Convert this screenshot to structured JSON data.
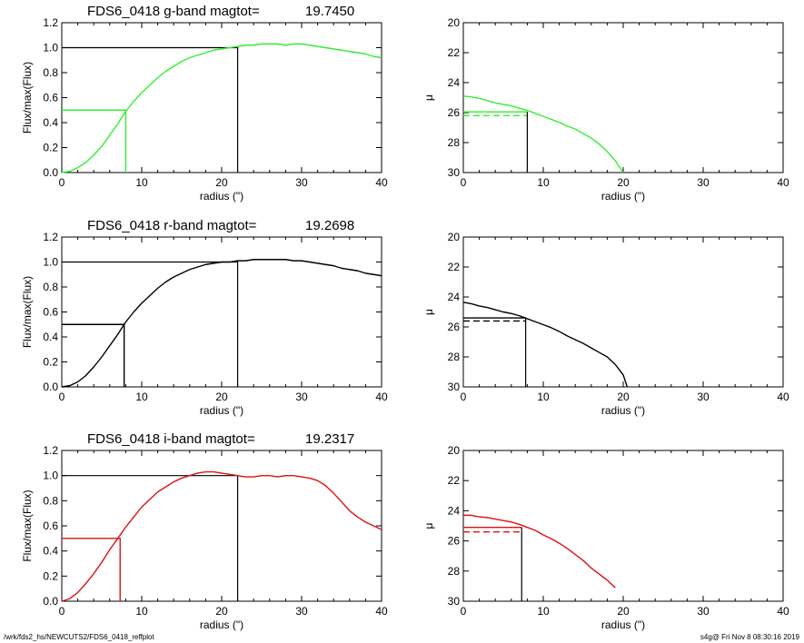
{
  "footer": {
    "left": "/wrk/fds2_hs/NEWCUTS2/FDS6_0418_reffplot",
    "right": "s4g@  Fri Nov  8 08:30:16 2019"
  },
  "colors": {
    "g": "#33ee33",
    "r": "#000000",
    "i": "#dd1111",
    "axes": "#000000"
  },
  "chart_data": [
    {
      "id": "g-growth",
      "type": "line",
      "band": "g",
      "title_left": "FDS6_0418 g-band  magtot=",
      "title_value": "19.7450",
      "xlabel": "radius (\")",
      "ylabel": "Flux/max(Flux)",
      "xlim": [
        0,
        40
      ],
      "ylim": [
        0,
        1.2
      ],
      "xticks": [
        0,
        10,
        20,
        30,
        40
      ],
      "yticks": [
        0.0,
        0.2,
        0.4,
        0.6,
        0.8,
        1.0,
        1.2
      ],
      "series": [
        {
          "values": [
            [
              0,
              0
            ],
            [
              1,
              0.01
            ],
            [
              2,
              0.04
            ],
            [
              3,
              0.08
            ],
            [
              4,
              0.14
            ],
            [
              5,
              0.21
            ],
            [
              6,
              0.3
            ],
            [
              7,
              0.39
            ],
            [
              8,
              0.49
            ],
            [
              9,
              0.57
            ],
            [
              10,
              0.64
            ],
            [
              11,
              0.7
            ],
            [
              12,
              0.76
            ],
            [
              13,
              0.81
            ],
            [
              14,
              0.85
            ],
            [
              15,
              0.89
            ],
            [
              16,
              0.92
            ],
            [
              17,
              0.94
            ],
            [
              18,
              0.96
            ],
            [
              19,
              0.98
            ],
            [
              20,
              0.99
            ],
            [
              21,
              1.0
            ],
            [
              22,
              1.01
            ],
            [
              23,
              1.02
            ],
            [
              24,
              1.02
            ],
            [
              25,
              1.03
            ],
            [
              26,
              1.03
            ],
            [
              27,
              1.03
            ],
            [
              28,
              1.02
            ],
            [
              29,
              1.03
            ],
            [
              30,
              1.03
            ],
            [
              31,
              1.02
            ],
            [
              32,
              1.01
            ],
            [
              33,
              1.0
            ],
            [
              34,
              0.99
            ],
            [
              35,
              0.98
            ],
            [
              36,
              0.97
            ],
            [
              37,
              0.96
            ],
            [
              38,
              0.95
            ],
            [
              39,
              0.93
            ],
            [
              40,
              0.92
            ]
          ]
        }
      ],
      "reference_lines": {
        "r_half": 8,
        "r_total": 22,
        "level_half": 0.5,
        "level_total": 1.0
      }
    },
    {
      "id": "g-profile",
      "type": "line",
      "band": "g",
      "xlabel": "radius (\")",
      "ylabel": "μ",
      "xlim": [
        0,
        40
      ],
      "ylim": [
        30,
        20
      ],
      "inverted_y": true,
      "xticks": [
        0,
        10,
        20,
        30,
        40
      ],
      "yticks": [
        20,
        22,
        24,
        26,
        28,
        30
      ],
      "series": [
        {
          "values": [
            [
              0,
              24.9
            ],
            [
              1,
              24.95
            ],
            [
              2,
              25.05
            ],
            [
              3,
              25.2
            ],
            [
              4,
              25.35
            ],
            [
              5,
              25.45
            ],
            [
              6,
              25.55
            ],
            [
              7,
              25.7
            ],
            [
              8,
              25.85
            ],
            [
              9,
              26.05
            ],
            [
              10,
              26.25
            ],
            [
              11,
              26.45
            ],
            [
              12,
              26.65
            ],
            [
              13,
              26.9
            ],
            [
              14,
              27.1
            ],
            [
              15,
              27.4
            ],
            [
              16,
              27.7
            ],
            [
              17,
              28.1
            ],
            [
              18,
              28.6
            ],
            [
              19,
              29.2
            ],
            [
              20,
              30
            ]
          ]
        }
      ],
      "reference_lines": {
        "r_half": 8,
        "mu_solid": 25.95,
        "mu_dashed": 26.2
      }
    },
    {
      "id": "r-growth",
      "type": "line",
      "band": "r",
      "title_left": "FDS6_0418 r-band  magtot=",
      "title_value": "19.2698",
      "xlabel": "radius (\")",
      "ylabel": "Flux/max(Flux)",
      "xlim": [
        0,
        40
      ],
      "ylim": [
        0,
        1.2
      ],
      "xticks": [
        0,
        10,
        20,
        30,
        40
      ],
      "yticks": [
        0.0,
        0.2,
        0.4,
        0.6,
        0.8,
        1.0,
        1.2
      ],
      "series": [
        {
          "values": [
            [
              0,
              0
            ],
            [
              1,
              0.01
            ],
            [
              2,
              0.04
            ],
            [
              3,
              0.09
            ],
            [
              4,
              0.16
            ],
            [
              5,
              0.24
            ],
            [
              6,
              0.33
            ],
            [
              7,
              0.42
            ],
            [
              8,
              0.52
            ],
            [
              9,
              0.6
            ],
            [
              10,
              0.67
            ],
            [
              11,
              0.73
            ],
            [
              12,
              0.79
            ],
            [
              13,
              0.84
            ],
            [
              14,
              0.88
            ],
            [
              15,
              0.91
            ],
            [
              16,
              0.94
            ],
            [
              17,
              0.96
            ],
            [
              18,
              0.98
            ],
            [
              19,
              0.99
            ],
            [
              20,
              1.0
            ],
            [
              21,
              1.0
            ],
            [
              22,
              1.01
            ],
            [
              23,
              1.01
            ],
            [
              24,
              1.02
            ],
            [
              25,
              1.02
            ],
            [
              26,
              1.02
            ],
            [
              27,
              1.02
            ],
            [
              28,
              1.02
            ],
            [
              29,
              1.01
            ],
            [
              30,
              1.01
            ],
            [
              31,
              1.0
            ],
            [
              32,
              0.99
            ],
            [
              33,
              0.98
            ],
            [
              34,
              0.97
            ],
            [
              35,
              0.95
            ],
            [
              36,
              0.94
            ],
            [
              37,
              0.93
            ],
            [
              38,
              0.91
            ],
            [
              39,
              0.9
            ],
            [
              40,
              0.89
            ]
          ]
        }
      ],
      "reference_lines": {
        "r_half": 7.8,
        "r_total": 22,
        "level_half": 0.5,
        "level_total": 1.0
      }
    },
    {
      "id": "r-profile",
      "type": "line",
      "band": "r",
      "xlabel": "radius (\")",
      "ylabel": "μ",
      "xlim": [
        0,
        40
      ],
      "ylim": [
        30,
        20
      ],
      "inverted_y": true,
      "xticks": [
        0,
        10,
        20,
        30,
        40
      ],
      "yticks": [
        20,
        22,
        24,
        26,
        28,
        30
      ],
      "series": [
        {
          "values": [
            [
              0,
              24.35
            ],
            [
              1,
              24.45
            ],
            [
              2,
              24.6
            ],
            [
              3,
              24.7
            ],
            [
              4,
              24.85
            ],
            [
              5,
              25.0
            ],
            [
              6,
              25.1
            ],
            [
              7,
              25.25
            ],
            [
              8,
              25.45
            ],
            [
              9,
              25.65
            ],
            [
              10,
              25.85
            ],
            [
              11,
              26.05
            ],
            [
              12,
              26.3
            ],
            [
              13,
              26.6
            ],
            [
              14,
              26.85
            ],
            [
              15,
              27.1
            ],
            [
              16,
              27.4
            ],
            [
              17,
              27.7
            ],
            [
              18,
              28.0
            ],
            [
              19,
              28.5
            ],
            [
              20,
              29.2
            ],
            [
              20.5,
              30
            ]
          ]
        }
      ],
      "reference_lines": {
        "r_half": 7.8,
        "mu_solid": 25.4,
        "mu_dashed": 25.6
      }
    },
    {
      "id": "i-growth",
      "type": "line",
      "band": "i",
      "title_left": "FDS6_0418 i-band  magtot=",
      "title_value": "19.2317",
      "xlabel": "radius (\")",
      "ylabel": "Flux/max(Flux)",
      "xlim": [
        0,
        40
      ],
      "ylim": [
        0,
        1.2
      ],
      "xticks": [
        0,
        10,
        20,
        30,
        40
      ],
      "yticks": [
        0.0,
        0.2,
        0.4,
        0.6,
        0.8,
        1.0,
        1.2
      ],
      "series": [
        {
          "values": [
            [
              0,
              0
            ],
            [
              1,
              0.02
            ],
            [
              2,
              0.07
            ],
            [
              3,
              0.14
            ],
            [
              4,
              0.22
            ],
            [
              5,
              0.31
            ],
            [
              6,
              0.41
            ],
            [
              7,
              0.5
            ],
            [
              8,
              0.59
            ],
            [
              9,
              0.67
            ],
            [
              10,
              0.75
            ],
            [
              11,
              0.81
            ],
            [
              12,
              0.87
            ],
            [
              13,
              0.91
            ],
            [
              14,
              0.95
            ],
            [
              15,
              0.98
            ],
            [
              16,
              1.0
            ],
            [
              17,
              1.02
            ],
            [
              18,
              1.03
            ],
            [
              19,
              1.03
            ],
            [
              20,
              1.02
            ],
            [
              21,
              1.01
            ],
            [
              22,
              1.0
            ],
            [
              23,
              0.99
            ],
            [
              24,
              0.99
            ],
            [
              25,
              1.0
            ],
            [
              26,
              1.0
            ],
            [
              27,
              0.99
            ],
            [
              28,
              1.0
            ],
            [
              29,
              1.0
            ],
            [
              30,
              0.99
            ],
            [
              31,
              0.98
            ],
            [
              32,
              0.96
            ],
            [
              33,
              0.92
            ],
            [
              34,
              0.86
            ],
            [
              35,
              0.79
            ],
            [
              36,
              0.72
            ],
            [
              37,
              0.67
            ],
            [
              38,
              0.63
            ],
            [
              39,
              0.6
            ],
            [
              40,
              0.57
            ]
          ]
        }
      ],
      "reference_lines": {
        "r_half": 7.3,
        "r_total": 22,
        "level_half": 0.5,
        "level_total": 1.0
      }
    },
    {
      "id": "i-profile",
      "type": "line",
      "band": "i",
      "xlabel": "radius (\")",
      "ylabel": "μ",
      "xlim": [
        0,
        40
      ],
      "ylim": [
        30,
        20
      ],
      "inverted_y": true,
      "xticks": [
        0,
        10,
        20,
        30,
        40
      ],
      "yticks": [
        20,
        22,
        24,
        26,
        28,
        30
      ],
      "series": [
        {
          "values": [
            [
              0,
              24.3
            ],
            [
              1,
              24.3
            ],
            [
              2,
              24.4
            ],
            [
              3,
              24.45
            ],
            [
              4,
              24.55
            ],
            [
              5,
              24.65
            ],
            [
              6,
              24.75
            ],
            [
              7,
              24.9
            ],
            [
              8,
              25.1
            ],
            [
              9,
              25.3
            ],
            [
              10,
              25.6
            ],
            [
              11,
              25.85
            ],
            [
              12,
              26.15
            ],
            [
              13,
              26.5
            ],
            [
              14,
              26.9
            ],
            [
              15,
              27.3
            ],
            [
              16,
              27.8
            ],
            [
              17,
              28.2
            ],
            [
              18,
              28.6
            ],
            [
              19,
              29.1
            ]
          ]
        }
      ],
      "reference_lines": {
        "r_half": 7.3,
        "mu_solid": 25.1,
        "mu_dashed": 25.4
      }
    }
  ]
}
